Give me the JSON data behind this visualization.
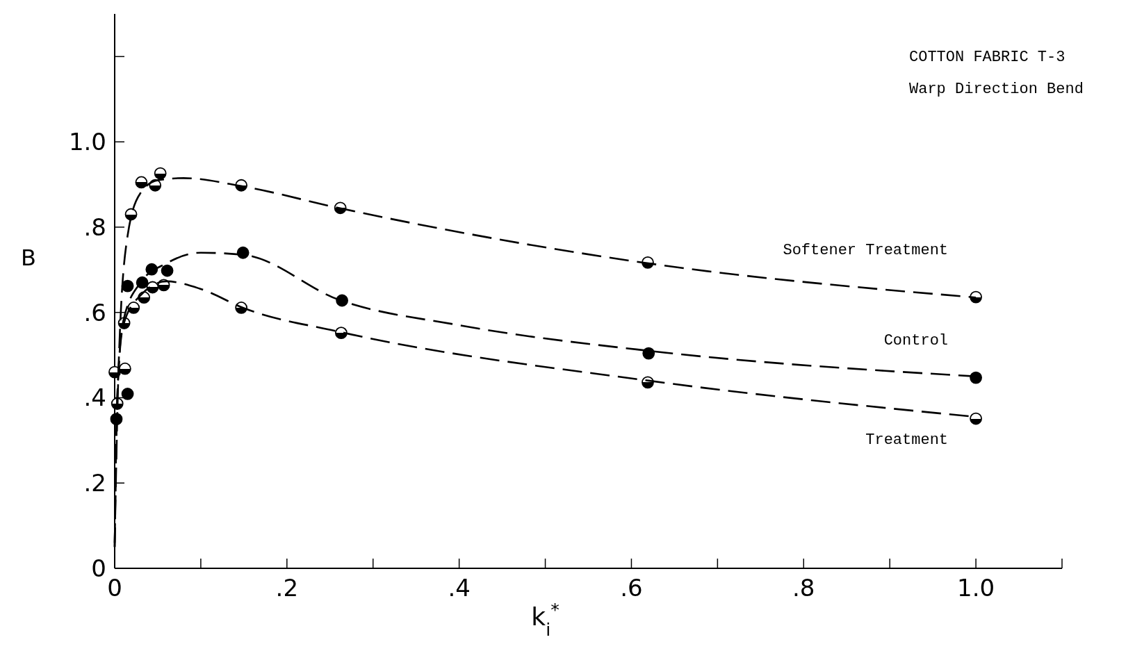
{
  "chart_data": {
    "type": "scatter",
    "title": "COTTON FABRIC T-3",
    "subtitle": "Warp Direction Bend",
    "xlabel": "k$_{i}$$^{*}$",
    "ylabel": "B",
    "xlim": [
      0,
      1.1
    ],
    "ylim": [
      0,
      1.3
    ],
    "xticks": [
      0,
      {
        "value": 0.1,
        "label": null
      },
      {
        "value": 0.2,
        "label": ".2"
      },
      {
        "value": 0.3,
        "label": null
      },
      {
        "value": 0.4,
        "label": ".4"
      },
      {
        "value": 0.5,
        "label": null
      },
      {
        "value": 0.6,
        "label": ".6"
      },
      {
        "value": 0.7,
        "label": null
      },
      {
        "value": 0.8,
        "label": ".8"
      },
      {
        "value": 0.9,
        "label": null
      },
      {
        "value": 1.0,
        "label": "1.0"
      },
      {
        "value": 1.1,
        "label": null
      }
    ],
    "yticks": [
      0,
      {
        "value": 0.2,
        "label": ".2"
      },
      {
        "value": 0.4,
        "label": ".4"
      },
      {
        "value": 0.6,
        "label": ".6"
      },
      {
        "value": 0.8,
        "label": ".8"
      },
      {
        "value": 1.0,
        "label": "1.0"
      },
      {
        "value": 1.2,
        "label": null
      }
    ],
    "grid": false,
    "marker": "circle",
    "series": [
      {
        "name": "Softener Treatment",
        "color": "#000000",
        "x": [
          0.019,
          0.031,
          0.047,
          0.053,
          0.147,
          0.262,
          0.619,
          1.0
        ],
        "values": [
          0.83,
          0.905,
          0.898,
          0.926,
          0.898,
          0.845,
          0.717,
          0.636
        ]
      },
      {
        "name": "Control",
        "color": "#000000",
        "x": [
          0.002,
          0.015,
          0.015,
          0.032,
          0.043,
          0.061,
          0.149,
          0.264,
          0.62,
          1.0
        ],
        "values": [
          0.35,
          0.409,
          0.662,
          0.67,
          0.701,
          0.698,
          0.74,
          0.628,
          0.504,
          0.447
        ]
      },
      {
        "name": "Treatment",
        "color": "#000000",
        "x": [
          0,
          0.003,
          0.012,
          0.011,
          0.022,
          0.034,
          0.044,
          0.057,
          0.147,
          0.263,
          0.619,
          1.0
        ],
        "values": [
          0.46,
          0.386,
          0.468,
          0.575,
          0.611,
          0.635,
          0.659,
          0.664,
          0.611,
          0.552,
          0.436,
          0.351
        ]
      },
      {
        "type": "line",
        "color": "#000000",
        "line_style": "dashed",
        "marker": "none",
        "x": [
          0,
          0.005,
          0.015,
          0.03,
          0.05,
          0.08,
          0.15,
          0.26,
          0.62,
          1.0
        ],
        "values": [
          0.06,
          0.5,
          0.78,
          0.88,
          0.91,
          0.915,
          0.895,
          0.845,
          0.715,
          0.635
        ]
      },
      {
        "type": "line",
        "color": "#000000",
        "line_style": "dashed",
        "marker": "none",
        "x": [
          0,
          0.003,
          0.01,
          0.03,
          0.06,
          0.1,
          0.15,
          0.26,
          0.4,
          0.62,
          1.0
        ],
        "values": [
          0.05,
          0.4,
          0.58,
          0.67,
          0.715,
          0.74,
          0.735,
          0.63,
          0.57,
          0.51,
          0.45
        ]
      },
      {
        "type": "line",
        "color": "#000000",
        "line_style": "dashed",
        "marker": "none",
        "x": [
          0,
          0.003,
          0.01,
          0.03,
          0.06,
          0.1,
          0.15,
          0.26,
          0.62,
          1.0
        ],
        "values": [
          0.05,
          0.4,
          0.57,
          0.64,
          0.673,
          0.655,
          0.61,
          0.555,
          0.44,
          0.355
        ]
      }
    ]
  }
}
